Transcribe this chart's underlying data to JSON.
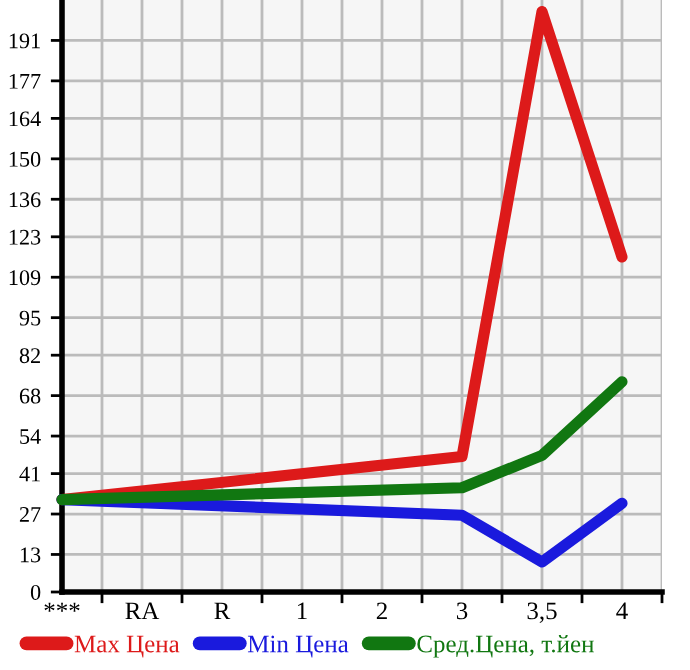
{
  "chart_data": {
    "type": "line",
    "categories": [
      "***",
      "RA",
      "R",
      "1",
      "2",
      "3",
      "3,5",
      "4"
    ],
    "series": [
      {
        "name": "Max Цена",
        "color": "#dd1a1a",
        "values": [
          32,
          null,
          null,
          null,
          null,
          46.9,
          201,
          116
        ]
      },
      {
        "name": "Min Цена",
        "color": "#1a1add",
        "values": [
          32,
          null,
          null,
          null,
          null,
          26.6,
          10.4,
          30.7
        ]
      },
      {
        "name": "Сред.Цена, т.йен",
        "color": "#117711",
        "values": [
          32,
          null,
          null,
          null,
          null,
          36.1,
          47.3,
          72.8
        ]
      }
    ],
    "ylim": [
      0,
      205
    ],
    "yticks": [
      0,
      13,
      27,
      41,
      54,
      68,
      82,
      95,
      109,
      123,
      136,
      150,
      164,
      177,
      191
    ],
    "grid": true,
    "legend": "bottom",
    "marker": "none",
    "line_style": "solid"
  }
}
